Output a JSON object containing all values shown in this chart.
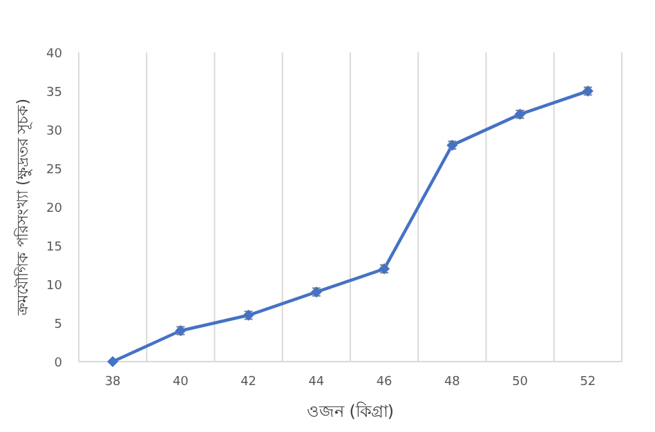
{
  "chart_data": {
    "type": "line",
    "xlabel": "ওজন (কিগ্রা)",
    "ylabel": "ক্রমযৌগিক পরিসংখ্যা (ক্ষুদ্রতর সূচক)",
    "categories": [
      "38",
      "40",
      "42",
      "44",
      "46",
      "48",
      "50",
      "52"
    ],
    "series": [
      {
        "color": "#4472c4",
        "values": [
          0,
          4,
          6,
          9,
          12,
          28,
          32,
          35
        ],
        "errors": [
          null,
          0.5,
          0.5,
          0.5,
          0.5,
          0.5,
          0.5,
          0.5
        ]
      }
    ],
    "ylim": [
      0,
      40
    ],
    "yticks": [
      0,
      5,
      10,
      15,
      20,
      25,
      30,
      35,
      40
    ],
    "grid": "x",
    "marker": "diamond",
    "line_style": "solid"
  }
}
